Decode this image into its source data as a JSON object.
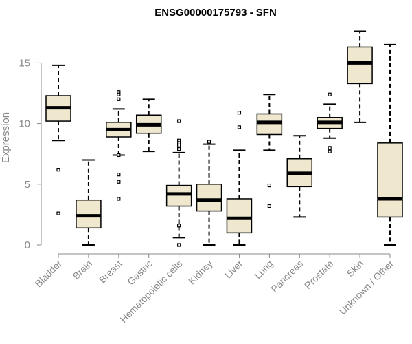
{
  "chart_data": {
    "type": "box",
    "title": "ENSG00000175793 - SFN",
    "xlabel": "",
    "ylabel": "Expression",
    "ylim": [
      0,
      17.8
    ],
    "yticks": [
      0,
      5,
      10,
      15
    ],
    "ytick_labels": [
      "0",
      "5",
      "10",
      "15"
    ],
    "colors": {
      "box_fill": "#efe8cf",
      "box_stroke": "#000000",
      "axis": "#888888",
      "title": "#000000"
    },
    "categories": [
      "Bladder",
      "Brain",
      "Breast",
      "Gastric",
      "Hematopoietic cells",
      "Kidney",
      "Liver",
      "Lung",
      "Pancreas",
      "Prostate",
      "Skin",
      "Unknown / Other"
    ],
    "boxes": [
      {
        "category": "Bladder",
        "whisker_low": 8.6,
        "q1": 10.2,
        "median": 11.3,
        "q3": 12.3,
        "whisker_high": 14.8,
        "outliers": [
          6.2,
          2.6
        ]
      },
      {
        "category": "Brain",
        "whisker_low": 0.0,
        "q1": 1.4,
        "median": 2.4,
        "q3": 3.7,
        "whisker_high": 7.0,
        "outliers": []
      },
      {
        "category": "Breast",
        "whisker_low": 7.4,
        "q1": 8.9,
        "median": 9.5,
        "q3": 10.1,
        "whisker_high": 11.2,
        "outliers": [
          12.6,
          12.4,
          12.0,
          7.4,
          5.8,
          5.2,
          3.8
        ]
      },
      {
        "category": "Gastric",
        "whisker_low": 7.7,
        "q1": 9.2,
        "median": 9.9,
        "q3": 10.7,
        "whisker_high": 12.0,
        "outliers": []
      },
      {
        "category": "Hematopoietic cells",
        "whisker_low": 0.6,
        "q1": 3.2,
        "median": 4.2,
        "q3": 4.9,
        "whisker_high": 7.6,
        "outliers": [
          10.2,
          8.6,
          8.4,
          8.2,
          7.9,
          1.6,
          0.0
        ]
      },
      {
        "category": "Kidney",
        "whisker_low": 0.0,
        "q1": 2.8,
        "median": 3.7,
        "q3": 5.0,
        "whisker_high": 8.3,
        "outliers": [
          8.5
        ]
      },
      {
        "category": "Liver",
        "whisker_low": 0.0,
        "q1": 1.0,
        "median": 2.2,
        "q3": 3.8,
        "whisker_high": 7.8,
        "outliers": [
          10.9,
          9.7
        ]
      },
      {
        "category": "Lung",
        "whisker_low": 7.8,
        "q1": 9.1,
        "median": 10.1,
        "q3": 10.8,
        "whisker_high": 12.4,
        "outliers": [
          4.9,
          3.2
        ]
      },
      {
        "category": "Pancreas",
        "whisker_low": 2.3,
        "q1": 4.8,
        "median": 5.9,
        "q3": 7.1,
        "whisker_high": 9.0,
        "outliers": []
      },
      {
        "category": "Prostate",
        "whisker_low": 8.8,
        "q1": 9.6,
        "median": 10.1,
        "q3": 10.5,
        "whisker_high": 11.6,
        "outliers": [
          12.4,
          8.0,
          7.7
        ]
      },
      {
        "category": "Skin",
        "whisker_low": 10.1,
        "q1": 13.3,
        "median": 15.0,
        "q3": 16.3,
        "whisker_high": 17.6,
        "outliers": []
      },
      {
        "category": "Unknown / Other",
        "whisker_low": 0.0,
        "q1": 2.3,
        "median": 3.8,
        "q3": 8.4,
        "whisker_high": 16.5,
        "outliers": []
      }
    ]
  }
}
